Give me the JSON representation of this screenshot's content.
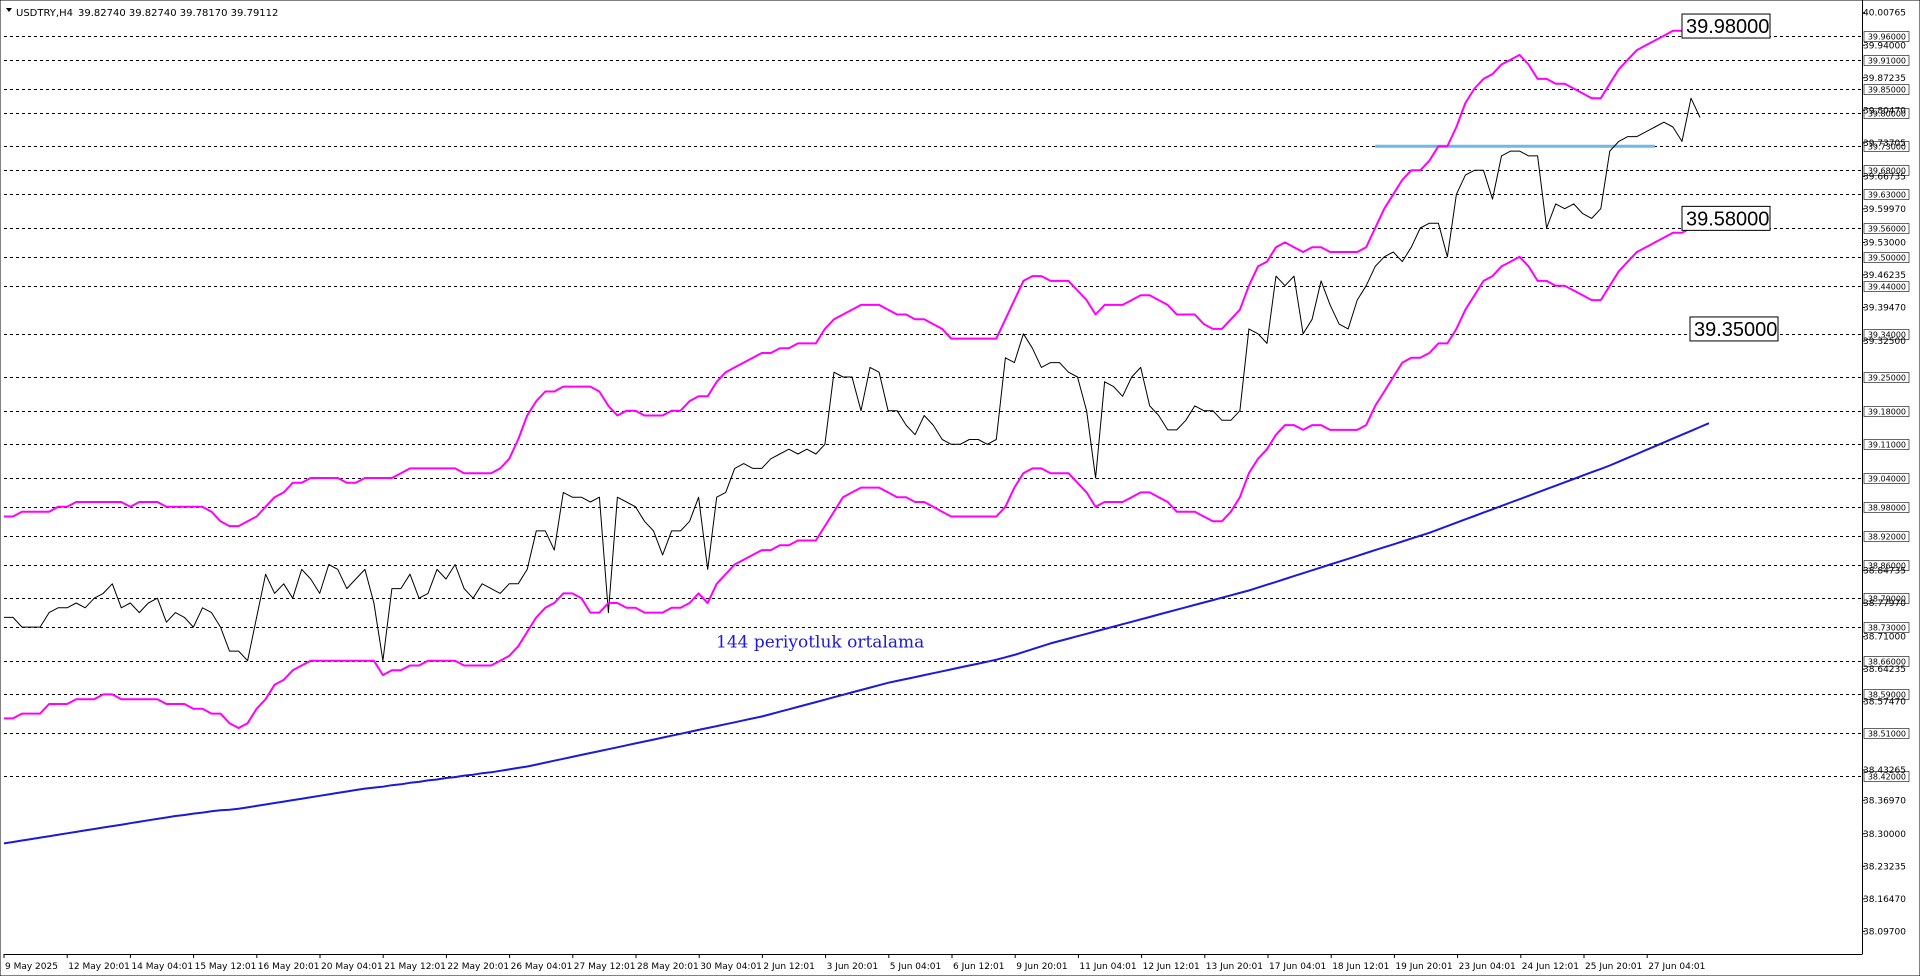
{
  "header": {
    "symbol_title": "USDTRY,H4",
    "ohlc_text": "39.82740 39.82740 39.78170 39.79112"
  },
  "chart_data": {
    "type": "line",
    "title": "USDTRY,H4",
    "xlabel": "",
    "ylabel": "",
    "ylim": [
      38.05,
      40.03
    ],
    "grid": false,
    "x_tick_labels": [
      "9 May 2025",
      "12 May 20:01",
      "14 May 04:01",
      "15 May 12:01",
      "16 May 20:01",
      "20 May 04:01",
      "21 May 12:01",
      "22 May 20:01",
      "26 May 04:01",
      "27 May 12:01",
      "28 May 20:01",
      "30 May 04:01",
      "2 Jun 12:01",
      "3 Jun 20:01",
      "5 Jun 04:01",
      "6 Jun 12:01",
      "9 Jun 20:01",
      "11 Jun 04:01",
      "12 Jun 12:01",
      "13 Jun 20:01",
      "17 Jun 04:01",
      "18 Jun 12:01",
      "19 Jun 20:01",
      "23 Jun 04:01",
      "24 Jun 12:01",
      "25 Jun 20:01",
      "27 Jun 04:01"
    ],
    "y_tick_labels": [
      "40.00765",
      "39.94000",
      "39.87235",
      "39.80470",
      "39.73705",
      "39.66735",
      "39.59970",
      "39.53000",
      "39.46235",
      "39.39470",
      "39.32500",
      "38.84735",
      "38.77970",
      "38.71000",
      "38.64235",
      "38.57470",
      "38.43265",
      "38.36970",
      "38.30000",
      "38.23235",
      "38.16470",
      "38.09700"
    ],
    "horizontal_levels": [
      39.96,
      39.91,
      39.85,
      39.8,
      39.73,
      39.68,
      39.63,
      39.56,
      39.5,
      39.44,
      39.34,
      39.25,
      39.18,
      39.11,
      39.04,
      38.98,
      38.92,
      38.86,
      38.79,
      38.73,
      38.66,
      38.59,
      38.51,
      38.42
    ],
    "horizontal_level_labels": [
      "39.96000",
      "39.91000",
      "39.85000",
      "39.80000",
      "39.73000",
      "39.68000",
      "39.63000",
      "39.56000",
      "39.50000",
      "39.44000",
      "39.34000",
      "39.25000",
      "39.18000",
      "39.11000",
      "39.04000",
      "38.98000",
      "38.92000",
      "38.86000",
      "38.79000",
      "38.73000",
      "38.66000",
      "38.59000",
      "38.51000",
      "38.42000"
    ],
    "highlight_level": {
      "value": 39.73,
      "from_bar": 152,
      "to_bar": 183,
      "color": "#6fb8e8"
    },
    "boxed_labels": [
      {
        "text": "39.98000",
        "value": 39.98
      },
      {
        "text": "39.58000",
        "value": 39.58
      },
      {
        "text": "39.35000",
        "value": 39.35
      }
    ],
    "annotation": {
      "text": "144 periyotluk ortalama",
      "value": 38.7
    },
    "series": [
      {
        "role": "price",
        "color": "#000000",
        "values": [
          38.75,
          38.75,
          38.73,
          38.73,
          38.73,
          38.76,
          38.77,
          38.77,
          38.78,
          38.77,
          38.79,
          38.8,
          38.82,
          38.77,
          38.78,
          38.76,
          38.78,
          38.79,
          38.74,
          38.76,
          38.75,
          38.73,
          38.77,
          38.76,
          38.73,
          38.68,
          38.68,
          38.66,
          38.75,
          38.84,
          38.8,
          38.82,
          38.79,
          38.85,
          38.83,
          38.8,
          38.86,
          38.85,
          38.81,
          38.83,
          38.85,
          38.78,
          38.66,
          38.81,
          38.81,
          38.84,
          38.79,
          38.8,
          38.85,
          38.83,
          38.86,
          38.81,
          38.79,
          38.82,
          38.81,
          38.8,
          38.82,
          38.82,
          38.85,
          38.93,
          38.93,
          38.89,
          39.01,
          39.0,
          39.0,
          38.99,
          39.0,
          38.76,
          39.0,
          38.99,
          38.98,
          38.95,
          38.93,
          38.88,
          38.93,
          38.93,
          38.95,
          39.0,
          38.85,
          39.0,
          39.01,
          39.06,
          39.07,
          39.06,
          39.06,
          39.08,
          39.09,
          39.1,
          39.09,
          39.1,
          39.09,
          39.11,
          39.26,
          39.25,
          39.25,
          39.18,
          39.27,
          39.26,
          39.18,
          39.18,
          39.15,
          39.13,
          39.17,
          39.15,
          39.12,
          39.11,
          39.11,
          39.12,
          39.12,
          39.11,
          39.12,
          39.29,
          39.28,
          39.34,
          39.31,
          39.27,
          39.28,
          39.28,
          39.26,
          39.25,
          39.18,
          39.04,
          39.24,
          39.23,
          39.21,
          39.25,
          39.27,
          39.19,
          39.17,
          39.14,
          39.14,
          39.16,
          39.19,
          39.18,
          39.18,
          39.16,
          39.16,
          39.18,
          39.35,
          39.34,
          39.32,
          39.46,
          39.44,
          39.46,
          39.34,
          39.37,
          39.45,
          39.4,
          39.36,
          39.35,
          39.41,
          39.44,
          39.48,
          39.5,
          39.51,
          39.49,
          39.52,
          39.56,
          39.57,
          39.57,
          39.5,
          39.63,
          39.67,
          39.68,
          39.68,
          39.62,
          39.71,
          39.72,
          39.72,
          39.71,
          39.71,
          39.56,
          39.61,
          39.6,
          39.61,
          39.59,
          39.58,
          39.6,
          39.72,
          39.74,
          39.75,
          39.75,
          39.76,
          39.77,
          39.78,
          39.77,
          39.74,
          39.83,
          39.79
        ]
      },
      {
        "role": "upper-band",
        "color": "#ff00ff",
        "values": [
          38.96,
          38.96,
          38.97,
          38.97,
          38.97,
          38.97,
          38.98,
          38.98,
          38.99,
          38.99,
          38.99,
          38.99,
          38.99,
          38.99,
          38.98,
          38.99,
          38.99,
          38.99,
          38.98,
          38.98,
          38.98,
          38.98,
          38.98,
          38.97,
          38.95,
          38.94,
          38.94,
          38.95,
          38.96,
          38.98,
          39.0,
          39.01,
          39.03,
          39.03,
          39.04,
          39.04,
          39.04,
          39.04,
          39.03,
          39.03,
          39.04,
          39.04,
          39.04,
          39.04,
          39.05,
          39.06,
          39.06,
          39.06,
          39.06,
          39.06,
          39.06,
          39.05,
          39.05,
          39.05,
          39.05,
          39.06,
          39.08,
          39.12,
          39.17,
          39.2,
          39.22,
          39.22,
          39.23,
          39.23,
          39.23,
          39.23,
          39.22,
          39.19,
          39.17,
          39.18,
          39.18,
          39.17,
          39.17,
          39.17,
          39.18,
          39.18,
          39.2,
          39.21,
          39.21,
          39.24,
          39.26,
          39.27,
          39.28,
          39.29,
          39.3,
          39.3,
          39.31,
          39.31,
          39.32,
          39.32,
          39.32,
          39.35,
          39.37,
          39.38,
          39.39,
          39.4,
          39.4,
          39.4,
          39.39,
          39.38,
          39.38,
          39.37,
          39.37,
          39.36,
          39.35,
          39.33,
          39.33,
          39.33,
          39.33,
          39.33,
          39.33,
          39.37,
          39.41,
          39.45,
          39.46,
          39.46,
          39.45,
          39.45,
          39.45,
          39.43,
          39.41,
          39.38,
          39.4,
          39.4,
          39.4,
          39.41,
          39.42,
          39.42,
          39.41,
          39.4,
          39.38,
          39.38,
          39.38,
          39.36,
          39.35,
          39.35,
          39.37,
          39.39,
          39.44,
          39.48,
          39.49,
          39.52,
          39.53,
          39.52,
          39.51,
          39.52,
          39.52,
          39.51,
          39.51,
          39.51,
          39.51,
          39.52,
          39.56,
          39.6,
          39.63,
          39.66,
          39.68,
          39.68,
          39.7,
          39.73,
          39.73,
          39.77,
          39.82,
          39.85,
          39.87,
          39.88,
          39.9,
          39.91,
          39.92,
          39.9,
          39.87,
          39.87,
          39.86,
          39.86,
          39.85,
          39.84,
          39.83,
          39.83,
          39.86,
          39.89,
          39.91,
          39.93,
          39.94,
          39.95,
          39.96,
          39.97,
          39.97,
          39.98,
          39.98
        ]
      },
      {
        "role": "lower-band",
        "color": "#ff00ff",
        "values": [
          38.54,
          38.54,
          38.55,
          38.55,
          38.55,
          38.57,
          38.57,
          38.57,
          38.58,
          38.58,
          38.58,
          38.59,
          38.59,
          38.58,
          38.58,
          38.58,
          38.58,
          38.58,
          38.57,
          38.57,
          38.57,
          38.56,
          38.56,
          38.55,
          38.55,
          38.53,
          38.52,
          38.53,
          38.56,
          38.58,
          38.61,
          38.62,
          38.64,
          38.65,
          38.66,
          38.66,
          38.66,
          38.66,
          38.66,
          38.66,
          38.66,
          38.66,
          38.63,
          38.64,
          38.64,
          38.65,
          38.65,
          38.66,
          38.66,
          38.66,
          38.66,
          38.65,
          38.65,
          38.65,
          38.65,
          38.66,
          38.67,
          38.69,
          38.72,
          38.75,
          38.77,
          38.78,
          38.8,
          38.8,
          38.79,
          38.76,
          38.76,
          38.78,
          38.78,
          38.77,
          38.77,
          38.76,
          38.76,
          38.76,
          38.77,
          38.77,
          38.78,
          38.8,
          38.78,
          38.82,
          38.84,
          38.86,
          38.87,
          38.88,
          38.89,
          38.89,
          38.9,
          38.9,
          38.91,
          38.91,
          38.91,
          38.94,
          38.97,
          39.0,
          39.01,
          39.02,
          39.02,
          39.02,
          39.01,
          39.0,
          39.0,
          38.99,
          38.99,
          38.98,
          38.97,
          38.96,
          38.96,
          38.96,
          38.96,
          38.96,
          38.96,
          38.98,
          39.02,
          39.05,
          39.06,
          39.06,
          39.05,
          39.05,
          39.05,
          39.03,
          39.01,
          38.98,
          38.99,
          38.99,
          38.99,
          39.0,
          39.01,
          39.01,
          39.0,
          38.99,
          38.97,
          38.97,
          38.97,
          38.96,
          38.95,
          38.95,
          38.97,
          39.0,
          39.05,
          39.08,
          39.1,
          39.13,
          39.15,
          39.15,
          39.14,
          39.15,
          39.15,
          39.14,
          39.14,
          39.14,
          39.14,
          39.15,
          39.19,
          39.22,
          39.25,
          39.28,
          39.29,
          39.29,
          39.3,
          39.32,
          39.32,
          39.35,
          39.39,
          39.42,
          39.45,
          39.46,
          39.48,
          39.49,
          39.5,
          39.48,
          39.45,
          39.45,
          39.44,
          39.44,
          39.43,
          39.42,
          39.41,
          39.41,
          39.44,
          39.47,
          39.49,
          39.51,
          39.52,
          39.53,
          39.54,
          39.55,
          39.55,
          39.56,
          39.57
        ]
      },
      {
        "role": "moving-average-144",
        "color": "#1a1ad8",
        "values": [
          38.28,
          38.283,
          38.286,
          38.289,
          38.292,
          38.295,
          38.298,
          38.301,
          38.304,
          38.307,
          38.31,
          38.313,
          38.316,
          38.319,
          38.322,
          38.325,
          38.328,
          38.331,
          38.334,
          38.337,
          38.339,
          38.342,
          38.344,
          38.347,
          38.349,
          38.35,
          38.352,
          38.355,
          38.358,
          38.361,
          38.364,
          38.367,
          38.37,
          38.373,
          38.376,
          38.379,
          38.382,
          38.385,
          38.388,
          38.391,
          38.394,
          38.396,
          38.398,
          38.401,
          38.403,
          38.406,
          38.408,
          38.411,
          38.413,
          38.416,
          38.418,
          38.421,
          38.423,
          38.426,
          38.428,
          38.431,
          38.434,
          38.437,
          38.44,
          38.444,
          38.448,
          38.452,
          38.456,
          38.46,
          38.464,
          38.468,
          38.472,
          38.476,
          38.48,
          38.484,
          38.488,
          38.492,
          38.496,
          38.5,
          38.504,
          38.508,
          38.512,
          38.516,
          38.52,
          38.524,
          38.528,
          38.532,
          38.536,
          38.54,
          38.544,
          38.549,
          38.554,
          38.559,
          38.564,
          38.569,
          38.574,
          38.579,
          38.584,
          38.589,
          38.594,
          38.599,
          38.604,
          38.609,
          38.614,
          38.618,
          38.622,
          38.626,
          38.63,
          38.634,
          38.638,
          38.642,
          38.646,
          38.65,
          38.654,
          38.658,
          38.662,
          38.667,
          38.672,
          38.678,
          38.684,
          38.69,
          38.696,
          38.701,
          38.706,
          38.711,
          38.716,
          38.721,
          38.726,
          38.731,
          38.736,
          38.741,
          38.746,
          38.751,
          38.756,
          38.761,
          38.766,
          38.771,
          38.776,
          38.781,
          38.786,
          38.791,
          38.796,
          38.801,
          38.806,
          38.812,
          38.818,
          38.824,
          38.83,
          38.836,
          38.842,
          38.848,
          38.854,
          38.86,
          38.866,
          38.872,
          38.878,
          38.884,
          38.89,
          38.896,
          38.902,
          38.908,
          38.914,
          38.92,
          38.926,
          38.933,
          38.94,
          38.947,
          38.954,
          38.961,
          38.968,
          38.975,
          38.982,
          38.989,
          38.996,
          39.003,
          39.01,
          39.017,
          39.024,
          39.031,
          39.038,
          39.045,
          39.052,
          39.059,
          39.066,
          39.074,
          39.082,
          39.09,
          39.098,
          39.106,
          39.114,
          39.122,
          39.13,
          39.138,
          39.146,
          39.154
        ]
      }
    ]
  }
}
